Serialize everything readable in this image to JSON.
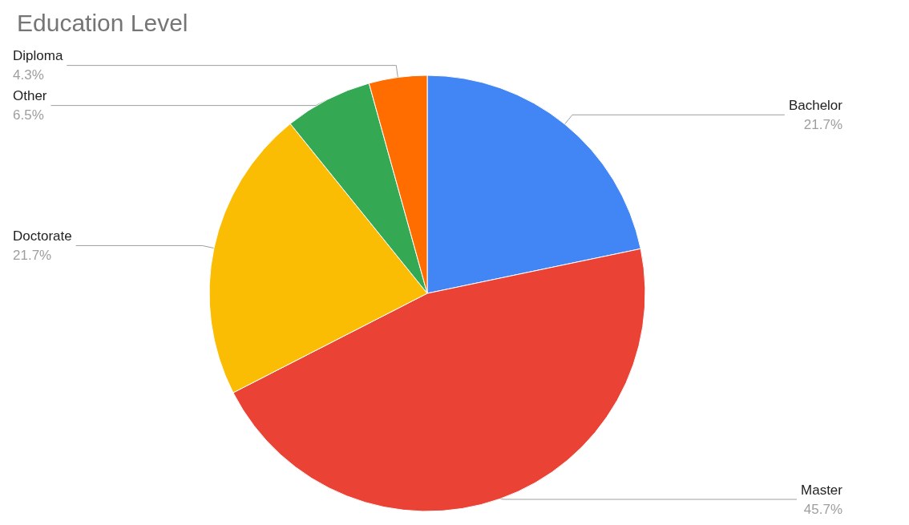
{
  "chart_data": {
    "type": "pie",
    "title": "Education Level",
    "categories": [
      "Bachelor",
      "Master",
      "Doctorate",
      "Other",
      "Diploma"
    ],
    "values": [
      21.7,
      45.7,
      21.7,
      6.5,
      4.3
    ],
    "value_labels": [
      "21.7%",
      "45.7%",
      "21.7%",
      "6.5%",
      "4.3%"
    ],
    "colors": [
      "#4285f4",
      "#ea4335",
      "#fbbc04",
      "#34a853",
      "#ff6d01"
    ],
    "legend": false
  }
}
